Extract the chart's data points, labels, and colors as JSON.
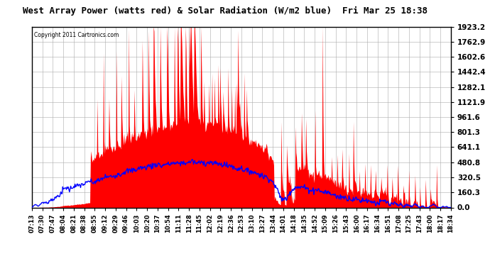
{
  "title": "West Array Power (watts red) & Solar Radiation (W/m2 blue)  Fri Mar 25 18:38",
  "copyright_text": "Copyright 2011 Cartronics.com",
  "bg_color": "#ffffff",
  "plot_bg_color": "#ffffff",
  "grid_color": "#aaaaaa",
  "y_max": 1923.2,
  "y_min": 0.0,
  "y_ticks": [
    0.0,
    160.3,
    320.5,
    480.8,
    641.1,
    801.3,
    961.6,
    1121.9,
    1282.1,
    1442.4,
    1602.6,
    1762.9,
    1923.2
  ],
  "red_color": "#ff0000",
  "blue_color": "#0000ff",
  "x_labels": [
    "07:13",
    "07:30",
    "07:47",
    "08:04",
    "08:21",
    "08:38",
    "08:55",
    "09:12",
    "09:29",
    "09:46",
    "10:03",
    "10:20",
    "10:37",
    "10:54",
    "11:11",
    "11:28",
    "11:45",
    "12:02",
    "12:19",
    "12:36",
    "12:53",
    "13:10",
    "13:27",
    "13:44",
    "14:01",
    "14:18",
    "14:35",
    "14:52",
    "15:09",
    "15:26",
    "15:43",
    "16:00",
    "16:17",
    "16:34",
    "16:51",
    "17:08",
    "17:25",
    "17:43",
    "18:00",
    "18:17",
    "18:34"
  ]
}
